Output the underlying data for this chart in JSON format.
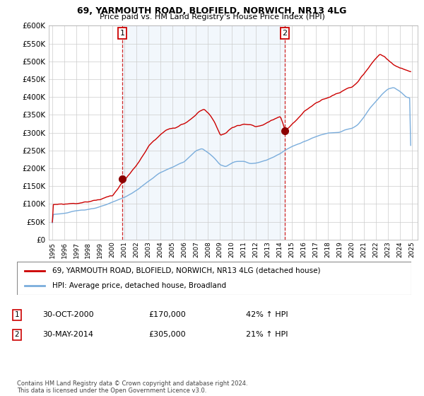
{
  "title1": "69, YARMOUTH ROAD, BLOFIELD, NORWICH, NR13 4LG",
  "title2": "Price paid vs. HM Land Registry's House Price Index (HPI)",
  "legend_line1": "69, YARMOUTH ROAD, BLOFIELD, NORWICH, NR13 4LG (detached house)",
  "legend_line2": "HPI: Average price, detached house, Broadland",
  "annotation1_label": "1",
  "annotation1_date": "30-OCT-2000",
  "annotation1_price": "£170,000",
  "annotation1_hpi": "42% ↑ HPI",
  "annotation2_label": "2",
  "annotation2_date": "30-MAY-2014",
  "annotation2_price": "£305,000",
  "annotation2_hpi": "21% ↑ HPI",
  "footer": "Contains HM Land Registry data © Crown copyright and database right 2024.\nThis data is licensed under the Open Government Licence v3.0.",
  "sale1_x": 2000.83,
  "sale1_y": 170000,
  "sale2_x": 2014.41,
  "sale2_y": 305000,
  "hpi_color": "#7aaddc",
  "price_color": "#cc0000",
  "vline_color": "#cc0000",
  "dot_color": "#8b0000",
  "shade_color": "#ddeeff",
  "ylim": [
    0,
    600000
  ],
  "xlim_left": 1994.7,
  "xlim_right": 2025.5,
  "background_color": "#ffffff",
  "grid_color": "#cccccc"
}
